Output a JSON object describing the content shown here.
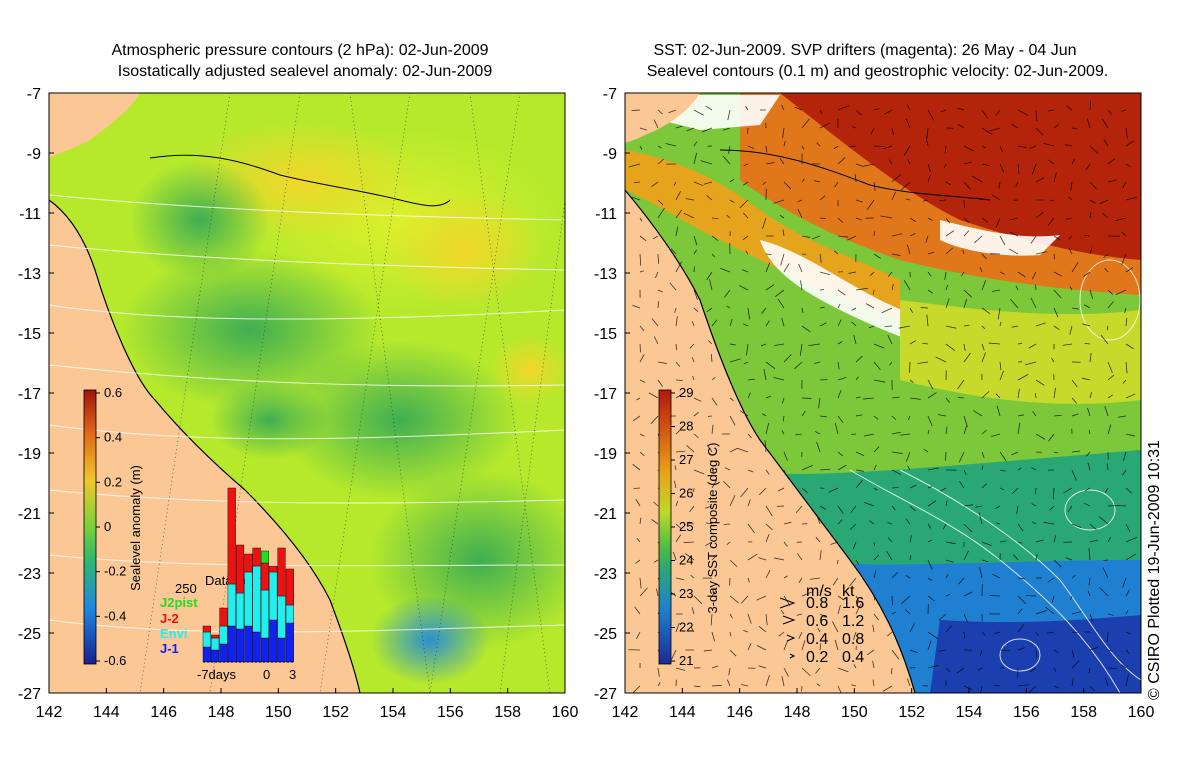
{
  "left_panel": {
    "title_line1": "Atmospheric pressure contours (2 hPa): 02-Jun-2009",
    "title_line2": "Isostatically adjusted sealevel anomaly: 02-Jun-2009",
    "colorbar": {
      "label": "Sealevel anomaly (m)",
      "ticks": [
        "0.6",
        "0.4",
        "0.2",
        "0",
        "-0.2",
        "-0.4",
        "-0.6"
      ],
      "tick_values": [
        0.6,
        0.4,
        0.2,
        0,
        -0.2,
        -0.4,
        -0.6
      ]
    },
    "data_count": {
      "title": "Data count",
      "ymax_label": "250",
      "ymax": 250,
      "xlabel_left": "-7days",
      "xlabel_zero": "0",
      "xlabel_right": "3",
      "legend": [
        {
          "name": "J2pist",
          "color": "#22dd22"
        },
        {
          "name": "J-2",
          "color": "#ee1111"
        },
        {
          "name": "Envi",
          "color": "#22eeee"
        },
        {
          "name": "J-1",
          "color": "#1122ee"
        }
      ],
      "days": [
        -7,
        -6,
        -5,
        -4,
        -3,
        -2,
        -1,
        0,
        1,
        2,
        3
      ],
      "bars": [
        {
          "j1": 25,
          "envi": 25,
          "j2": 10,
          "j2pist": 0
        },
        {
          "j1": 20,
          "envi": 20,
          "j2": 5,
          "j2pist": 0
        },
        {
          "j1": 30,
          "envi": 30,
          "j2": 30,
          "j2pist": 0
        },
        {
          "j1": 60,
          "envi": 70,
          "j2": 160,
          "j2pist": 0
        },
        {
          "j1": 55,
          "envi": 60,
          "j2": 80,
          "j2pist": 0
        },
        {
          "j1": 60,
          "envi": 90,
          "j2": 30,
          "j2pist": 0
        },
        {
          "j1": 50,
          "envi": 110,
          "j2": 30,
          "j2pist": 0
        },
        {
          "j1": 40,
          "envi": 80,
          "j2": 45,
          "j2pist": 20
        },
        {
          "j1": 70,
          "envi": 80,
          "j2": 10,
          "j2pist": 0
        },
        {
          "j1": 40,
          "envi": 70,
          "j2": 80,
          "j2pist": 0
        },
        {
          "j1": 65,
          "envi": 30,
          "j2": 60,
          "j2pist": 0
        }
      ]
    }
  },
  "right_panel": {
    "title_line1": "SST: 02-Jun-2009. SVP drifters (magenta): 26 May - 04 Jun",
    "title_line2": "Sealevel contours (0.1 m) and geostrophic velocity: 02-Jun-2009.",
    "colorbar": {
      "label": "3-day SST composite (deg C)",
      "ticks": [
        "29",
        "28",
        "27",
        "26",
        "25",
        "24",
        "23",
        "22",
        "21"
      ],
      "tick_values": [
        29,
        28,
        27,
        26,
        25,
        24,
        23,
        22,
        21
      ]
    },
    "velocity_key": {
      "header_ms": "m/s",
      "header_kt": "kt",
      "rows": [
        {
          "ms": "0.8",
          "kt": "1.6"
        },
        {
          "ms": "0.6",
          "kt": "1.2"
        },
        {
          "ms": "0.4",
          "kt": "0.8"
        },
        {
          "ms": "0.2",
          "kt": "0.4"
        }
      ]
    },
    "credit": "© CSIRO Plotted 19-Jun-2009 10:31"
  },
  "axes": {
    "x_ticks": [
      "142",
      "144",
      "146",
      "148",
      "150",
      "152",
      "154",
      "156",
      "158",
      "160"
    ],
    "x_values": [
      142,
      144,
      146,
      148,
      150,
      152,
      154,
      156,
      158,
      160
    ],
    "y_ticks": [
      "-7",
      "-9",
      "-11",
      "-13",
      "-15",
      "-17",
      "-19",
      "-21",
      "-23",
      "-25",
      "-27"
    ],
    "y_values": [
      -7,
      -9,
      -11,
      -13,
      -15,
      -17,
      -19,
      -21,
      -23,
      -25,
      -27
    ]
  },
  "colors": {
    "land": "#fbc795",
    "sla_green": "#6fd12e",
    "sla_yellow": "#d9f02a",
    "sst_red": "#b3240b",
    "sst_blue": "#1f6bcf"
  }
}
